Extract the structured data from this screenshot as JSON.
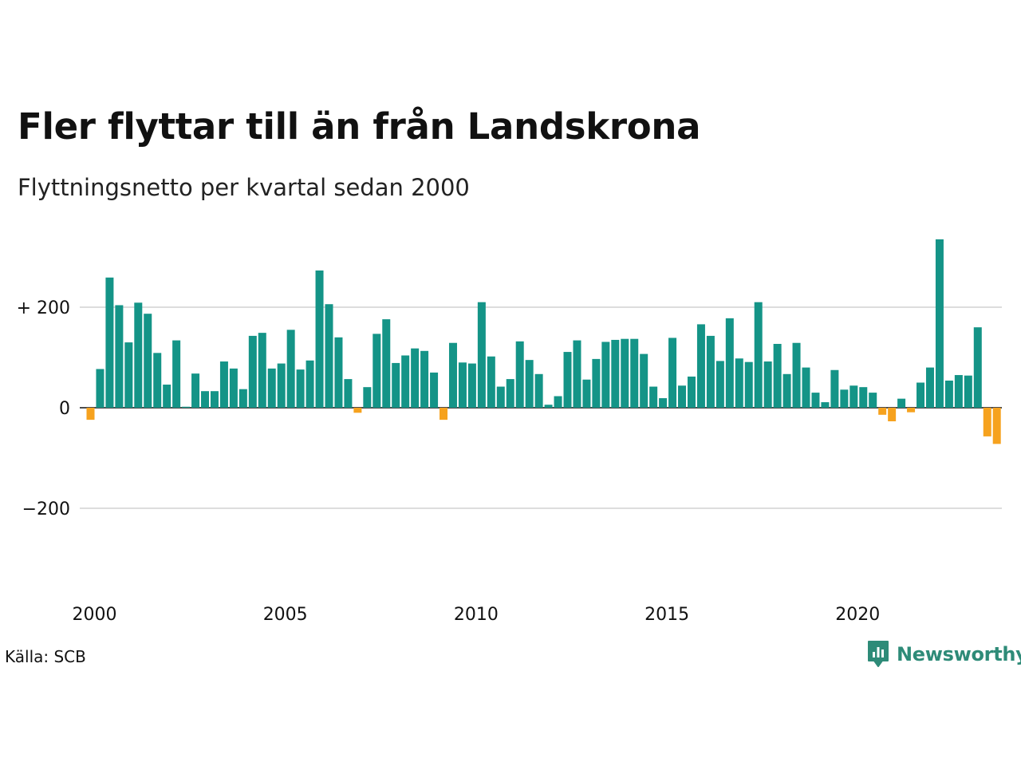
{
  "chart_data": {
    "type": "bar",
    "title": "Fler flyttar till än från Landskrona",
    "subtitle": "Flyttningsnetto per kvartal sedan 2000",
    "ylim": [
      -300,
      340
    ],
    "yticks": [
      {
        "value": 200,
        "label": "+ 200"
      },
      {
        "value": 0,
        "label": "0"
      },
      {
        "value": -200,
        "label": "−200"
      }
    ],
    "xticks": [
      "2000",
      "2005",
      "2010",
      "2015",
      "2020"
    ],
    "grid": true,
    "legend": "none",
    "first_period": "2000 Q1",
    "values": [
      -24,
      77,
      259,
      204,
      130,
      209,
      187,
      109,
      46,
      134,
      2,
      68,
      33,
      33,
      92,
      78,
      37,
      143,
      149,
      78,
      88,
      155,
      76,
      94,
      273,
      206,
      140,
      57,
      -10,
      41,
      147,
      176,
      89,
      104,
      118,
      113,
      70,
      -24,
      129,
      90,
      88,
      210,
      102,
      42,
      57,
      132,
      95,
      67,
      6,
      23,
      111,
      134,
      56,
      97,
      131,
      135,
      137,
      137,
      107,
      42,
      19,
      139,
      44,
      62,
      166,
      143,
      93,
      178,
      98,
      91,
      210,
      92,
      127,
      67,
      129,
      80,
      30,
      11,
      75,
      36,
      44,
      41,
      30,
      -14,
      -27,
      18,
      -9,
      50,
      80,
      335,
      54,
      65,
      64,
      160,
      -57,
      -72
    ],
    "positive_color": "#149487",
    "negative_color": "#f6a21e"
  },
  "source": "Källa: SCB",
  "brand": {
    "name": "Newsworthy",
    "color": "#2e8b78",
    "icon": "newsworthy-logo-icon"
  }
}
